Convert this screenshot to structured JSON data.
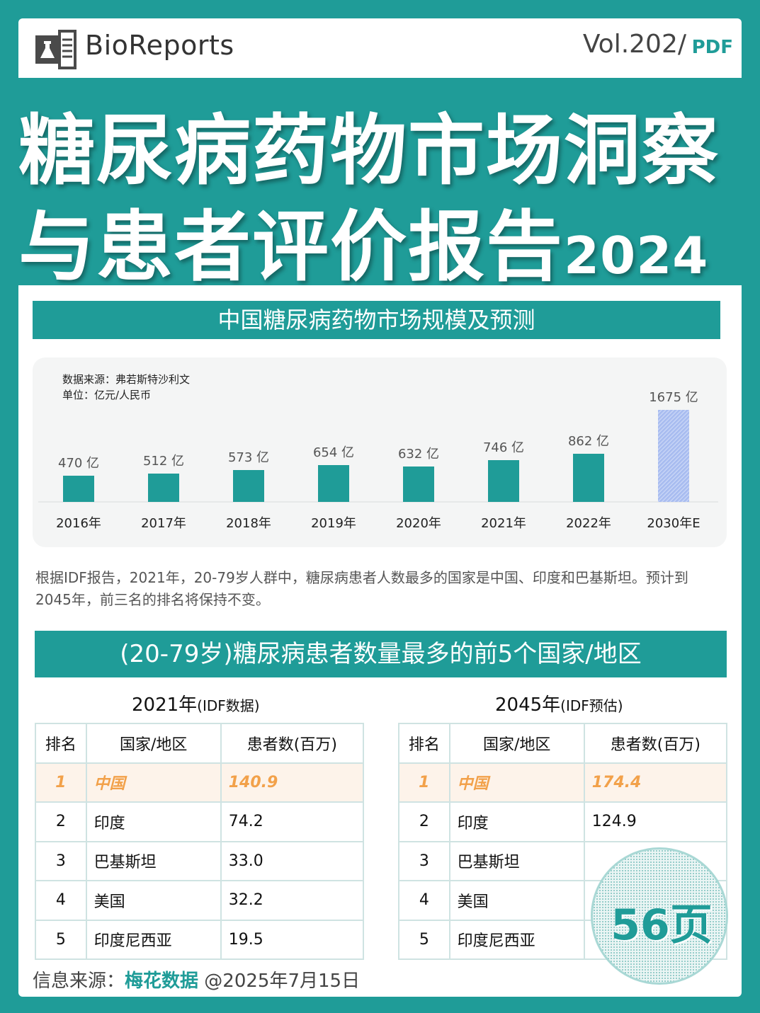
{
  "header": {
    "brand": "BioReports",
    "volume": "Vol.202/",
    "volume_tag": "PDF",
    "icons": [
      "lab-flask-icon"
    ]
  },
  "title": {
    "line1": "糖尿病药物市场洞察",
    "line2": "与患者评价报告",
    "year": "2024"
  },
  "section1": {
    "heading": "中国糖尿病药物市场规模及预测",
    "data_source": "数据来源：弗若斯特沙利文",
    "unit": "单位：亿元/人民币"
  },
  "chart_data": {
    "type": "bar",
    "categories": [
      "2016年",
      "2017年",
      "2018年",
      "2019年",
      "2020年",
      "2021年",
      "2022年",
      "2030年E"
    ],
    "values": [
      470,
      512,
      573,
      654,
      632,
      746,
      862,
      1675
    ],
    "value_labels": [
      "470 亿",
      "512 亿",
      "573 亿",
      "654 亿",
      "632 亿",
      "746 亿",
      "862 亿",
      "1675 亿"
    ],
    "forecast_index": 7,
    "title": "",
    "xlabel": "",
    "ylabel": "",
    "grid": false,
    "colors": {
      "actual": "#1f9c98",
      "forecast": "#a9bdf0"
    }
  },
  "paragraph": "根据IDF报告，2021年，20-79岁人群中，糖尿病患者人数最多的国家是中国、印度和巴基斯坦。预计到2045年，前三名的排名将保持不变。",
  "section2": {
    "heading": "(20-79岁)糖尿病患者数量最多的前5个国家/地区"
  },
  "table2021": {
    "title": "2021年",
    "title_note": "(IDF数据)",
    "headers": [
      "排名",
      "国家/地区",
      "患者数(百万)"
    ],
    "rows": [
      [
        "1",
        "中国",
        "140.9"
      ],
      [
        "2",
        "印度",
        "74.2"
      ],
      [
        "3",
        "巴基斯坦",
        "33.0"
      ],
      [
        "4",
        "美国",
        "32.2"
      ],
      [
        "5",
        "印度尼西亚",
        "19.5"
      ]
    ]
  },
  "table2045": {
    "title": "2045年",
    "title_note": "(IDF预估)",
    "headers": [
      "排名",
      "国家/地区",
      "患者数(百万)"
    ],
    "rows": [
      [
        "1",
        "中国",
        "174.4"
      ],
      [
        "2",
        "印度",
        "124.9"
      ],
      [
        "3",
        "巴基斯坦",
        ""
      ],
      [
        "4",
        "美国",
        ""
      ],
      [
        "5",
        "印度尼西亚",
        ""
      ]
    ]
  },
  "footer": {
    "source_label": "信息来源：",
    "source_name": "梅花数据",
    "date": " @2025年7月15日"
  },
  "badge": {
    "text": "56页"
  },
  "colors": {
    "brand_teal": "#1f9c98",
    "highlight_orange": "#f2a14a",
    "forecast_blue": "#a9bdf0"
  }
}
